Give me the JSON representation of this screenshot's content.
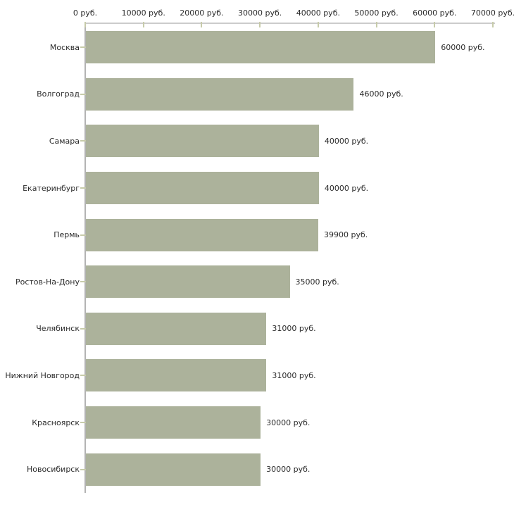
{
  "colors": {
    "background": "#ffffff",
    "bar": "#acb29b",
    "tick": "#c7cbaa",
    "axis_vertical": "#b3b3b3",
    "axis_horizontal": "#cccccc",
    "text": "#2b2b2b"
  },
  "chart_data": {
    "type": "bar",
    "orientation": "horizontal",
    "title": "",
    "xlabel": "",
    "ylabel": "",
    "xlim": [
      0,
      70000
    ],
    "grid": false,
    "legend": false,
    "categories": [
      "Москва",
      "Волгоград",
      "Самара",
      "Екатеринбург",
      "Пермь",
      "Ростов-На-Дону",
      "Челябинск",
      "Нижний Новгород",
      "Красноярск",
      "Новосибирск"
    ],
    "values": [
      60000,
      46000,
      40000,
      40000,
      39900,
      35000,
      31000,
      31000,
      30000,
      30000
    ],
    "value_labels": [
      "60000 руб.",
      "46000 руб.",
      "40000 руб.",
      "40000 руб.",
      "39900 руб.",
      "35000 руб.",
      "31000 руб.",
      "31000 руб.",
      "30000 руб.",
      "30000 руб."
    ],
    "x_tick_values": [
      0,
      10000,
      20000,
      30000,
      40000,
      50000,
      60000,
      70000
    ],
    "x_tick_labels": [
      "0 руб.",
      "10000 руб.",
      "20000 руб.",
      "30000 руб.",
      "40000 руб.",
      "50000 руб.",
      "60000 руб.",
      "70000 руб."
    ]
  }
}
